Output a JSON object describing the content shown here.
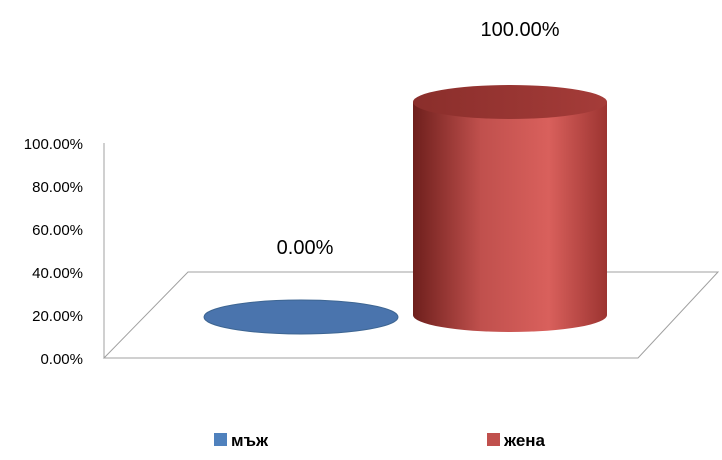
{
  "chart_data": {
    "type": "bar",
    "style": "3d-cylinder",
    "categories": [
      "мъж",
      "жена"
    ],
    "values": [
      0,
      100
    ],
    "data_labels": [
      "0.00%",
      "100.00%"
    ],
    "series_colors": [
      "#4a74ad",
      "#c0504d"
    ],
    "ylim": [
      0,
      100
    ],
    "y_ticks": [
      "0.00%",
      "20.00%",
      "40.00%",
      "60.00%",
      "80.00%",
      "100.00%"
    ],
    "legend": {
      "position": "bottom",
      "entries": [
        {
          "label": "мъж",
          "color": "#4f81bd"
        },
        {
          "label": "жена",
          "color": "#c0504d"
        }
      ]
    },
    "grid": false,
    "title": "",
    "xlabel": "",
    "ylabel": ""
  }
}
